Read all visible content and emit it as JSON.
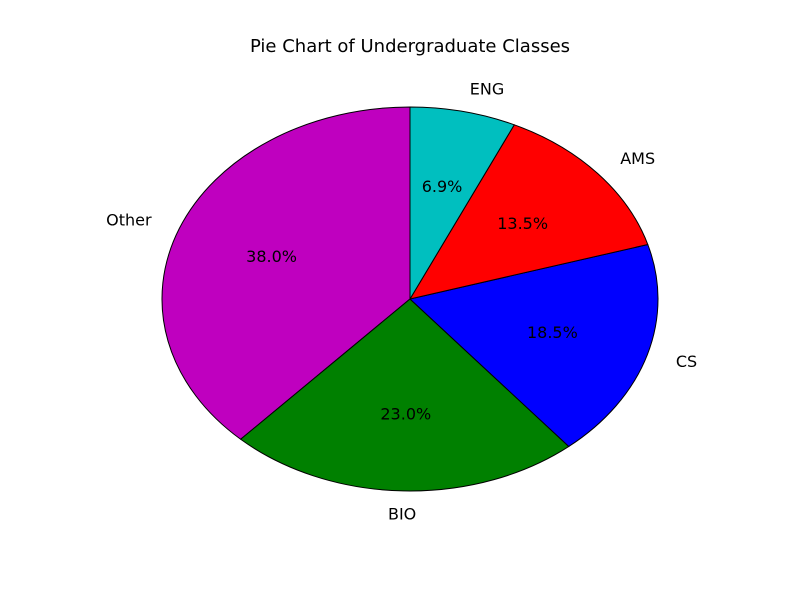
{
  "chart_data": {
    "type": "pie",
    "title": "Pie Chart of Undergraduate Classes",
    "slices": [
      {
        "label": "Other",
        "percent_label": "38.0%",
        "value": 38.0,
        "color": "#bf00bf"
      },
      {
        "label": "BIO",
        "percent_label": "23.0%",
        "value": 23.0,
        "color": "#008000"
      },
      {
        "label": "CS",
        "percent_label": "18.5%",
        "value": 18.5,
        "color": "#0000ff"
      },
      {
        "label": "AMS",
        "percent_label": "13.5%",
        "value": 13.5,
        "color": "#ff0000"
      },
      {
        "label": "ENG",
        "percent_label": "6.9%",
        "value": 6.9,
        "color": "#00bfbf"
      }
    ],
    "start_angle_deg": 90,
    "direction": "counterclockwise",
    "slice_edge_color": "#000000"
  }
}
